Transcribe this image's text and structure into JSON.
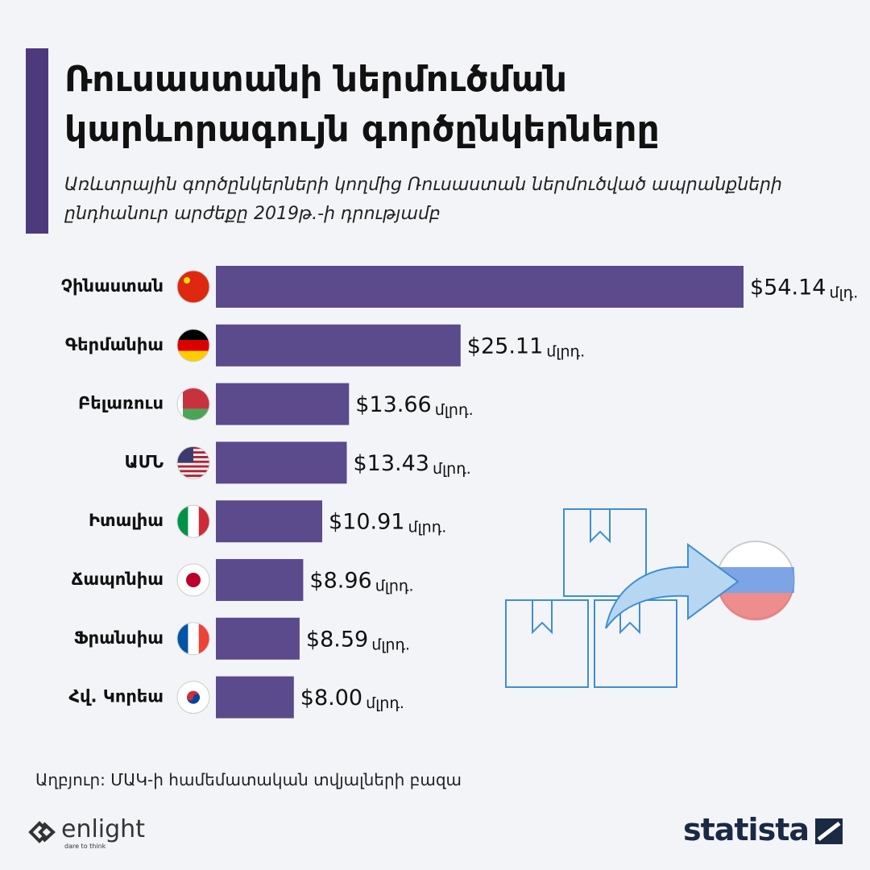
{
  "header": {
    "title": "Ռուսաստանի ներմուծման կարևորագույն գործընկերները",
    "subtitle": "Առևտրային գործընկերների կողմից Ռուսաստան ներմուծված ապրանքների ընդհանուր արժեքը 2019թ.-ի դրությամբ"
  },
  "chart_data": {
    "type": "bar",
    "orientation": "horizontal",
    "color": "#5b4a8c",
    "categories": [
      "Չինաստան",
      "Գերմանիա",
      "Բելառուս",
      "ԱՄՆ",
      "Իտալիա",
      "Ճապոնիա",
      "Ֆրանսիա",
      "Հվ. Կորեա"
    ],
    "values": [
      54.14,
      25.11,
      13.66,
      13.43,
      10.91,
      8.96,
      8.59,
      8.0
    ],
    "value_labels": [
      "$54.14",
      "$25.11",
      "$13.66",
      "$13.43",
      "$10.91",
      "$8.96",
      "$8.59",
      "$8.00"
    ],
    "value_units": [
      "մլդ.",
      "մլրդ.",
      "մլրդ.",
      "մլրդ.",
      "մլրդ.",
      "մլրդ.",
      "մլրդ.",
      "մլրդ."
    ]
  },
  "footer": {
    "source": "Աղբյուր: ՄԱԿ-ի համեմատական տվյալների բազա",
    "brand": "enlight",
    "tagline": "dare to think",
    "logo": "statista"
  }
}
